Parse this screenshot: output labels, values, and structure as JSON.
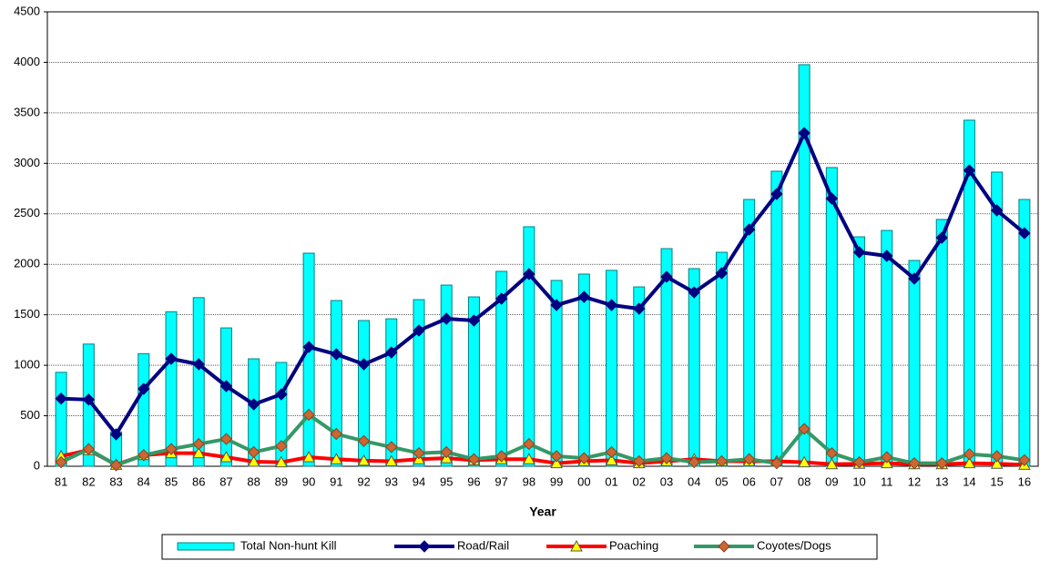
{
  "chart_data": {
    "type": "bar",
    "x_label": "Year",
    "categories": [
      "81",
      "82",
      "83",
      "84",
      "85",
      "86",
      "87",
      "88",
      "89",
      "90",
      "91",
      "92",
      "93",
      "94",
      "95",
      "96",
      "97",
      "98",
      "99",
      "00",
      "01",
      "02",
      "03",
      "04",
      "05",
      "06",
      "07",
      "08",
      "09",
      "10",
      "11",
      "12",
      "13",
      "14",
      "15",
      "16"
    ],
    "ylim": [
      0,
      4500
    ],
    "yticks": [
      0,
      500,
      1000,
      1500,
      2000,
      2500,
      3000,
      3500,
      4000,
      4500
    ],
    "grid": true,
    "legend": "bottom",
    "series": [
      {
        "name": "Total Non-hunt Kill",
        "type": "bar",
        "color": "#00ffff",
        "edge_color": "#008080",
        "values": [
          930,
          1210,
          340,
          1115,
          1530,
          1670,
          1370,
          1064,
          1028,
          2110,
          1641,
          1443,
          1460,
          1650,
          1794,
          1677,
          1930,
          2372,
          1840,
          1903,
          1940,
          1776,
          2155,
          1957,
          2119,
          2642,
          2922,
          3977,
          2958,
          2272,
          2335,
          2038,
          2444,
          3427,
          2913,
          2642
        ]
      },
      {
        "name": "Road/Rail",
        "type": "line",
        "color": "#000080",
        "marker": "diamond",
        "marker_color": "#000080",
        "values": [
          670,
          660,
          316,
          766,
          1064,
          1010,
          793,
          613,
          712,
          1181,
          1109,
          1010,
          1127,
          1344,
          1461,
          1443,
          1659,
          1903,
          1596,
          1677,
          1596,
          1560,
          1876,
          1722,
          1912,
          2344,
          2696,
          3300,
          2651,
          2119,
          2083,
          1858,
          2263,
          2930,
          2534,
          2308
        ]
      },
      {
        "name": "Poaching",
        "type": "line",
        "color": "#ff0000",
        "marker": "triangle",
        "marker_color": "#ffff00",
        "values": [
          100,
          160,
          15,
          110,
          130,
          130,
          90,
          45,
          40,
          90,
          70,
          55,
          50,
          70,
          80,
          60,
          70,
          70,
          30,
          50,
          60,
          30,
          50,
          70,
          50,
          50,
          50,
          40,
          20,
          25,
          30,
          20,
          20,
          30,
          25,
          15
        ]
      },
      {
        "name": "Coyotes/Dogs",
        "type": "line",
        "color": "#339966",
        "marker": "diamond",
        "marker_color": "#cc6633",
        "values": [
          40,
          170,
          10,
          110,
          170,
          220,
          270,
          140,
          200,
          510,
          320,
          250,
          190,
          130,
          140,
          70,
          100,
          220,
          100,
          80,
          140,
          50,
          80,
          40,
          50,
          70,
          30,
          370,
          130,
          40,
          90,
          30,
          30,
          120,
          100,
          60
        ]
      }
    ]
  }
}
